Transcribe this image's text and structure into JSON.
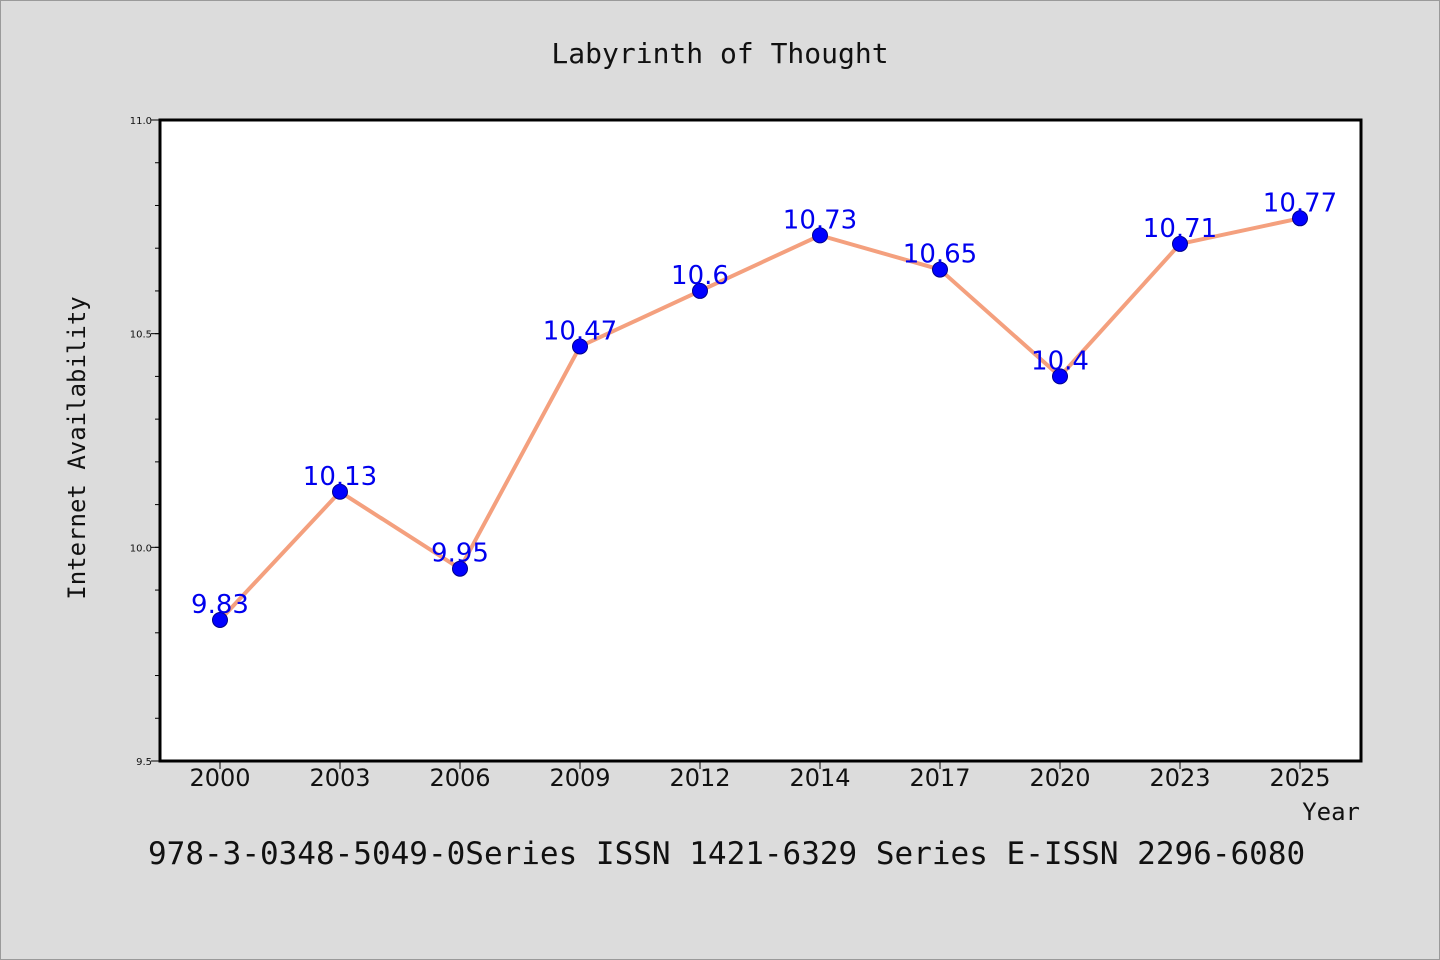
{
  "chart_data": {
    "type": "line",
    "title": "Labyrinth of Thought",
    "xlabel": "Year",
    "ylabel": "Internet Availability",
    "categories": [
      "2000",
      "2003",
      "2006",
      "2009",
      "2012",
      "2014",
      "2017",
      "2020",
      "2023",
      "2025"
    ],
    "series": [
      {
        "values": [
          9.83,
          10.13,
          9.95,
          10.47,
          10.6,
          10.73,
          10.65,
          10.4,
          10.71,
          10.77
        ]
      }
    ],
    "data_labels": [
      "9.83",
      "10.13",
      "9.95",
      "10.47",
      "10.6",
      "10.73",
      "10.65",
      "10.4",
      "10.71",
      "10.77"
    ],
    "yticks": [
      {
        "value": 9.5,
        "label": "9.5"
      },
      {
        "value": 10.0,
        "label": "10.0"
      },
      {
        "value": 10.5,
        "label": "10.5"
      },
      {
        "value": 11.0,
        "label": "11.0"
      }
    ],
    "ylim": [
      9.5,
      11.0
    ],
    "y_minor_step": 0.1,
    "grid": false,
    "line_color": "#f4a07e",
    "marker_color": "#0000ff",
    "label_color": "#0000ff"
  },
  "footer": {
    "text": "978-3-0348-5049-0Series ISSN 1421-6329 Series E-ISSN 2296-6080"
  }
}
